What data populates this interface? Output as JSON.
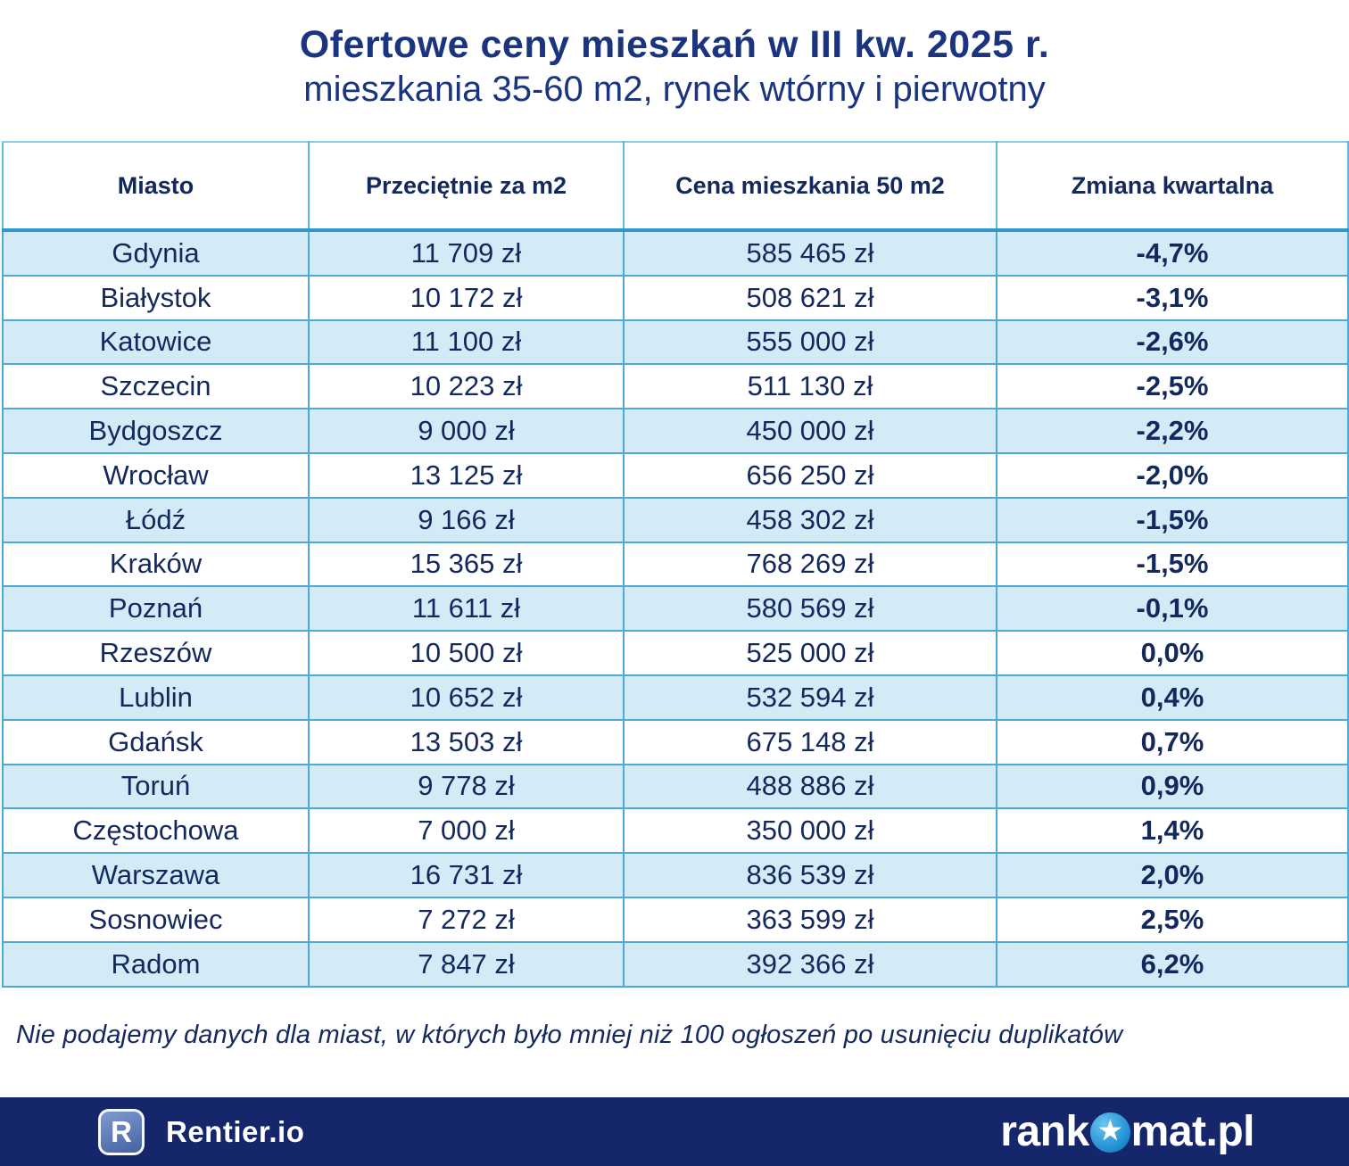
{
  "header": {
    "title": "Ofertowe ceny mieszkań w III kw. 2025 r.",
    "subtitle": "mieszkania 35-60 m2, rynek wtórny i pierwotny"
  },
  "chart_data": {
    "type": "table",
    "title": "Ofertowe ceny mieszkań w III kw. 2025 r.",
    "subtitle": "mieszkania 35-60 m2, rynek wtórny i pierwotny",
    "columns": [
      "Miasto",
      "Przeciętnie za m2",
      "Cena mieszkania 50 m2",
      "Zmiana kwartalna"
    ],
    "rows": [
      {
        "city": "Gdynia",
        "price_per_m2": "11 709 zł",
        "price_50m2": "585 465 zł",
        "quarterly_change": "-4,7%"
      },
      {
        "city": "Białystok",
        "price_per_m2": "10 172 zł",
        "price_50m2": "508 621 zł",
        "quarterly_change": "-3,1%"
      },
      {
        "city": "Katowice",
        "price_per_m2": "11 100 zł",
        "price_50m2": "555 000 zł",
        "quarterly_change": "-2,6%"
      },
      {
        "city": "Szczecin",
        "price_per_m2": "10 223 zł",
        "price_50m2": "511 130 zł",
        "quarterly_change": "-2,5%"
      },
      {
        "city": "Bydgoszcz",
        "price_per_m2": "9 000 zł",
        "price_50m2": "450 000 zł",
        "quarterly_change": "-2,2%"
      },
      {
        "city": "Wrocław",
        "price_per_m2": "13 125 zł",
        "price_50m2": "656 250 zł",
        "quarterly_change": "-2,0%"
      },
      {
        "city": "Łódź",
        "price_per_m2": "9 166 zł",
        "price_50m2": "458 302 zł",
        "quarterly_change": "-1,5%"
      },
      {
        "city": "Kraków",
        "price_per_m2": "15 365 zł",
        "price_50m2": "768 269 zł",
        "quarterly_change": "-1,5%"
      },
      {
        "city": "Poznań",
        "price_per_m2": "11 611 zł",
        "price_50m2": "580 569 zł",
        "quarterly_change": "-0,1%"
      },
      {
        "city": "Rzeszów",
        "price_per_m2": "10 500 zł",
        "price_50m2": "525 000 zł",
        "quarterly_change": "0,0%"
      },
      {
        "city": "Lublin",
        "price_per_m2": "10 652 zł",
        "price_50m2": "532 594 zł",
        "quarterly_change": "0,4%"
      },
      {
        "city": "Gdańsk",
        "price_per_m2": "13 503 zł",
        "price_50m2": "675 148 zł",
        "quarterly_change": "0,7%"
      },
      {
        "city": "Toruń",
        "price_per_m2": "9 778 zł",
        "price_50m2": "488 886 zł",
        "quarterly_change": "0,9%"
      },
      {
        "city": "Częstochowa",
        "price_per_m2": "7 000 zł",
        "price_50m2": "350 000 zł",
        "quarterly_change": "1,4%"
      },
      {
        "city": "Warszawa",
        "price_per_m2": "16 731 zł",
        "price_50m2": "836 539 zł",
        "quarterly_change": "2,0%"
      },
      {
        "city": "Sosnowiec",
        "price_per_m2": "7 272 zł",
        "price_50m2": "363 599 zł",
        "quarterly_change": "2,5%"
      },
      {
        "city": "Radom",
        "price_per_m2": "7 847 zł",
        "price_50m2": "392 366 zł",
        "quarterly_change": "6,2%"
      }
    ]
  },
  "footnote": "Nie podajemy danych dla miast, w których było mniej niż 100 ogłoszeń po usunięciu duplikatów",
  "footer_bar": {
    "rentier": {
      "badge_letter": "R",
      "label": "Rentier.io"
    },
    "rankomat": {
      "prefix": "rank",
      "star": "★",
      "suffix": "mat.pl"
    }
  },
  "colors": {
    "title_text": "#1a3480",
    "table_text": "#13295e",
    "row_alt_bg": "#d3ebf7",
    "grid_line": "#4fa9d8",
    "header_separator": "#2f97c9",
    "outer_border": "#8fcce8",
    "footer_bg": "#15266b",
    "star_circle": "#1f96d8"
  }
}
